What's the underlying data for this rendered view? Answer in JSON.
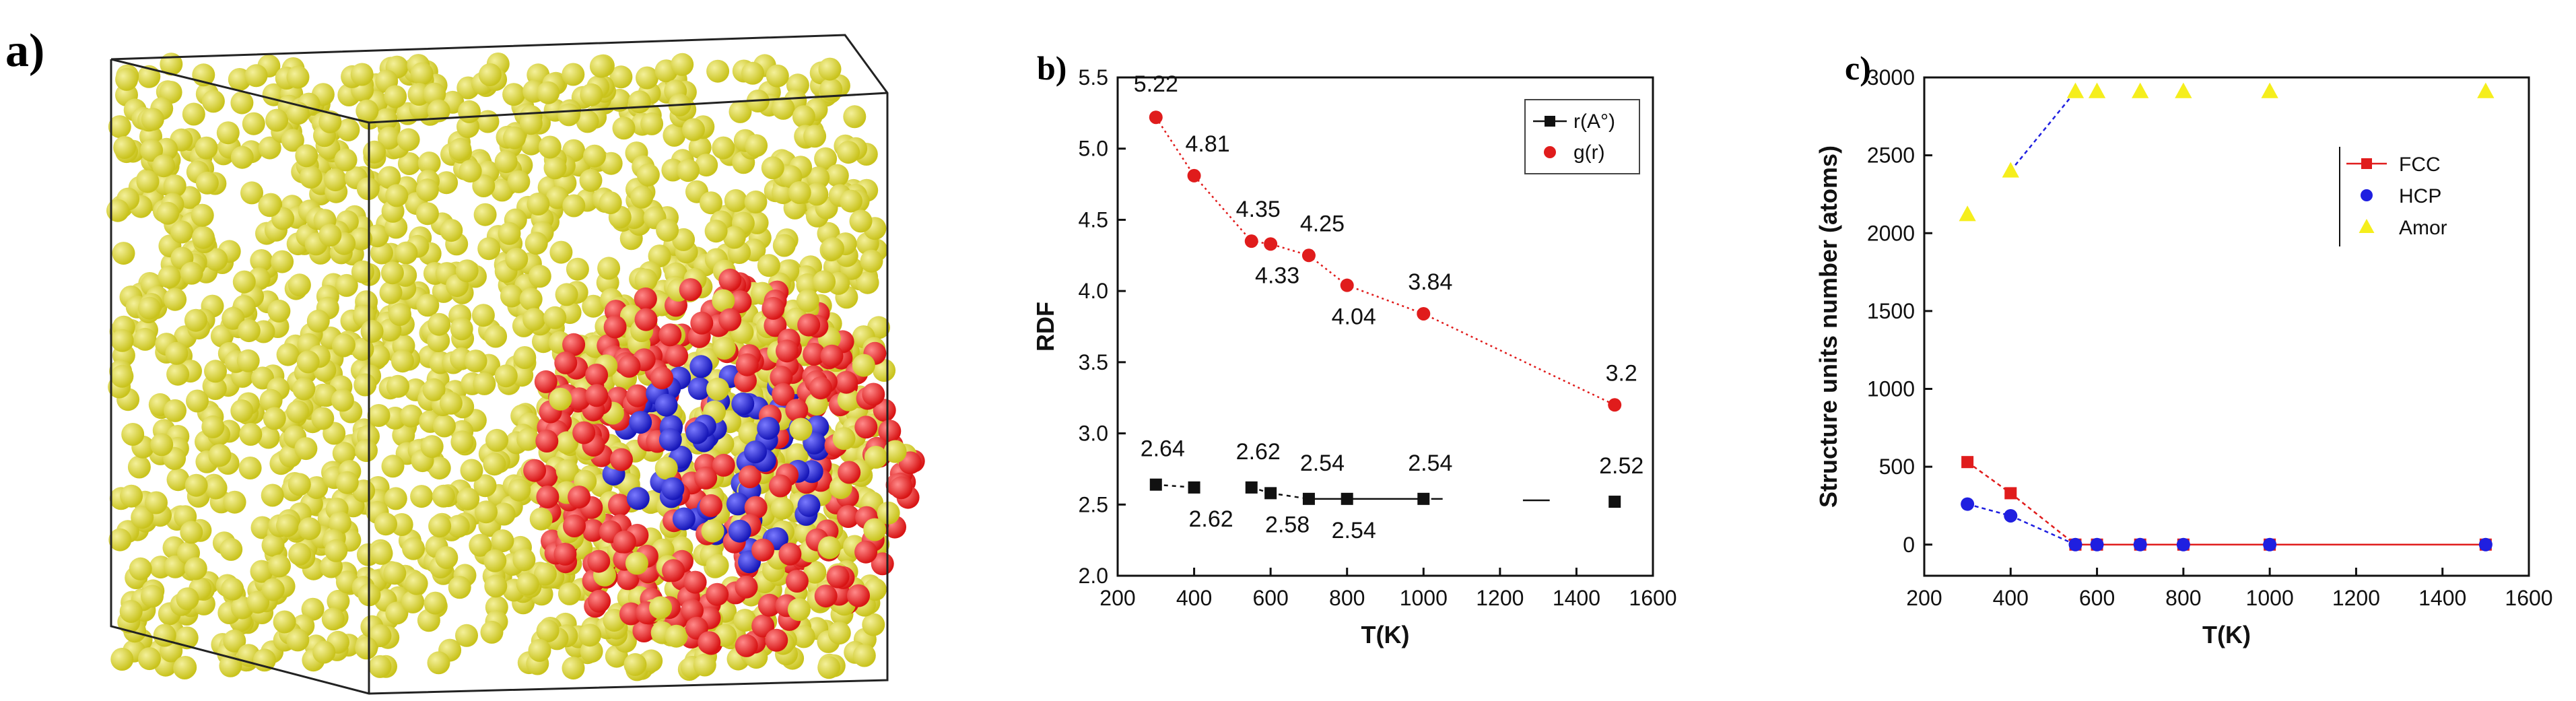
{
  "panels": {
    "a": {
      "label": "a)"
    },
    "b": {
      "label": "b)"
    },
    "c": {
      "label": "c)"
    }
  },
  "colors": {
    "yellow_atom": "#c9c31c",
    "red_atom": "#d81414",
    "blue_atom": "#1616b8",
    "fcc": "#e01c1c",
    "hcp": "#1f1fe0",
    "amor": "#f5ee1c",
    "rdf_line": "#111111",
    "g_line": "#e01c1c"
  },
  "chart_data": [
    {
      "id": "b",
      "type": "scatter",
      "title": "",
      "xlabel": "T(K)",
      "ylabel": "RDF",
      "xlim": [
        200,
        1600
      ],
      "ylim": [
        2.0,
        5.5
      ],
      "xticks": [
        200,
        400,
        600,
        800,
        1000,
        1200,
        1400,
        1600
      ],
      "yticks": [
        2.0,
        2.5,
        3.0,
        3.5,
        4.0,
        4.5,
        5.0,
        5.5
      ],
      "legend_position": "top-right",
      "series": [
        {
          "name": "r(A°)",
          "marker": "square",
          "line": "black",
          "x": [
            300,
            400,
            550,
            600,
            700,
            800,
            1000,
            1500
          ],
          "values": [
            2.64,
            2.62,
            2.62,
            2.58,
            2.54,
            2.54,
            2.54,
            2.52
          ],
          "labels": [
            "2.64",
            "2.62",
            "2.62",
            "2.58",
            "2.54",
            "2.54",
            "2.54",
            "2.52"
          ]
        },
        {
          "name": "g(r)",
          "marker": "circle",
          "line": "red-dotted",
          "x": [
            300,
            400,
            550,
            600,
            700,
            800,
            1000,
            1500
          ],
          "values": [
            5.22,
            4.81,
            4.35,
            4.33,
            4.25,
            4.04,
            3.84,
            3.2
          ],
          "labels": [
            "5.22",
            "4.81",
            "4.35",
            "4.33",
            "4.25",
            "4.04",
            "3.84",
            "3.2"
          ]
        }
      ]
    },
    {
      "id": "c",
      "type": "scatter",
      "title": "",
      "xlabel": "T(K)",
      "ylabel": "Structure units number (atoms)",
      "xlim": [
        200,
        1600
      ],
      "ylim": [
        -200,
        3000
      ],
      "xticks": [
        200,
        400,
        600,
        800,
        1000,
        1200,
        1400,
        1600
      ],
      "yticks": [
        0,
        500,
        1000,
        1500,
        2000,
        2500,
        3000
      ],
      "legend_position": "top-right",
      "series": [
        {
          "name": "FCC",
          "marker": "square",
          "x": [
            300,
            400,
            550,
            600,
            700,
            800,
            1000,
            1500
          ],
          "values": [
            530,
            330,
            0,
            0,
            0,
            0,
            0,
            0
          ]
        },
        {
          "name": "HCP",
          "marker": "circle",
          "x": [
            300,
            400,
            550,
            600,
            700,
            800,
            1000,
            1500
          ],
          "values": [
            260,
            185,
            0,
            0,
            0,
            0,
            0,
            0
          ]
        },
        {
          "name": "Amor",
          "marker": "triangle",
          "x": [
            300,
            400,
            550,
            600,
            700,
            800,
            1000,
            1500
          ],
          "values": [
            2120,
            2400,
            2910,
            2910,
            2910,
            2910,
            2910,
            2910
          ]
        }
      ]
    }
  ]
}
